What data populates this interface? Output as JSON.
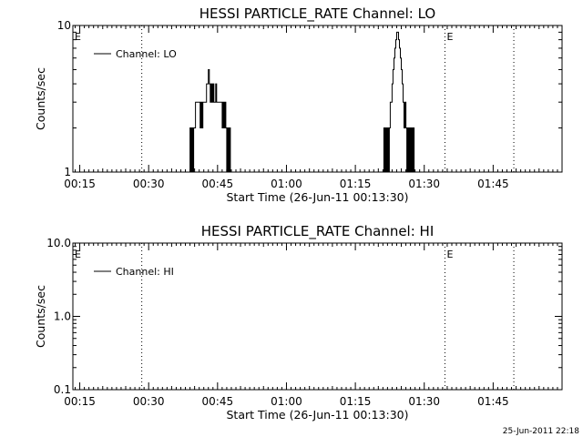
{
  "footer_stamp": "25-Jun-2011 22:18",
  "chart_data": [
    {
      "type": "line",
      "title": "HESSI PARTICLE_RATE Channel: LO",
      "xlabel": "Start Time (26-Jun-11 00:13:30)",
      "ylabel": "Counts/sec",
      "y_scale": "log",
      "ylim": [
        1,
        10
      ],
      "y_ticks": [
        1,
        10
      ],
      "y_tick_labels": [
        "1",
        "10"
      ],
      "xlim_minutes": [
        13.5,
        120
      ],
      "x_ticks": [
        15,
        30,
        45,
        60,
        75,
        90,
        105
      ],
      "x_tick_labels": [
        "00:15",
        "00:30",
        "00:45",
        "01:00",
        "01:15",
        "01:30",
        "01:45"
      ],
      "legend": {
        "position": "top-left",
        "entries": [
          "Channel: LO"
        ]
      },
      "vlines_minutes": [
        28.5,
        94.5,
        109.5
      ],
      "markers": [
        {
          "text": "E",
          "x_minutes": 13.9
        },
        {
          "text": "E",
          "x_minutes": 94.9
        }
      ],
      "series": [
        {
          "name": "Channel: LO",
          "x_minutes": [
            38.8,
            39.0,
            39.2,
            39.4,
            39.6,
            39.8,
            40.2,
            40.6,
            41.0,
            41.2,
            41.4,
            41.6,
            41.8,
            42.0,
            42.2,
            42.6,
            43.0,
            43.2,
            43.4,
            43.6,
            43.8,
            44.0,
            44.2,
            44.4,
            44.6,
            44.8,
            45.0,
            45.4,
            45.8,
            46.0,
            46.2,
            46.4,
            46.6,
            46.8,
            47.0,
            47.2,
            47.4,
            47.6,
            47.8,
            81.0,
            81.2,
            81.4,
            81.6,
            81.8,
            82.0,
            82.2,
            82.4,
            82.6,
            82.8,
            83.0,
            83.2,
            83.4,
            83.6,
            83.8,
            84.0,
            84.2,
            84.4,
            84.6,
            84.8,
            85.0,
            85.2,
            85.4,
            85.6,
            85.8,
            86.0,
            86.2,
            86.4,
            86.6,
            86.8,
            87.0,
            87.2,
            87.4,
            87.6,
            87.8,
            88.0
          ],
          "values": [
            1,
            2,
            1,
            2,
            1,
            2,
            3,
            3,
            3,
            2,
            3,
            2,
            3,
            3,
            3,
            4,
            5,
            4,
            3,
            4,
            3,
            4,
            3,
            3,
            4,
            3,
            3,
            3,
            3,
            2,
            3,
            2,
            3,
            2,
            1,
            2,
            1,
            2,
            1,
            1,
            2,
            1,
            2,
            1,
            2,
            1,
            2,
            3,
            3,
            4,
            5,
            6,
            7,
            8,
            9,
            9,
            8,
            7,
            6,
            5,
            4,
            3,
            2,
            3,
            2,
            1,
            2,
            1,
            2,
            1,
            2,
            1,
            2,
            1,
            1
          ]
        }
      ]
    },
    {
      "type": "line",
      "title": "HESSI PARTICLE_RATE Channel: HI",
      "xlabel": "Start Time (26-Jun-11 00:13:30)",
      "ylabel": "Counts/sec",
      "y_scale": "log",
      "ylim": [
        0.1,
        10
      ],
      "y_ticks": [
        0.1,
        1,
        10
      ],
      "y_tick_labels": [
        "0.1",
        "1.0",
        "10.0"
      ],
      "xlim_minutes": [
        13.5,
        120
      ],
      "x_ticks": [
        15,
        30,
        45,
        60,
        75,
        90,
        105
      ],
      "x_tick_labels": [
        "00:15",
        "00:30",
        "00:45",
        "01:00",
        "01:15",
        "01:30",
        "01:45"
      ],
      "legend": {
        "position": "top-left",
        "entries": [
          "Channel: HI"
        ]
      },
      "vlines_minutes": [
        28.5,
        94.5,
        109.5
      ],
      "markers": [
        {
          "text": "E",
          "x_minutes": 13.9
        },
        {
          "text": "E",
          "x_minutes": 94.9
        }
      ],
      "series": [
        {
          "name": "Channel: HI",
          "x_minutes": [],
          "values": []
        }
      ]
    }
  ]
}
